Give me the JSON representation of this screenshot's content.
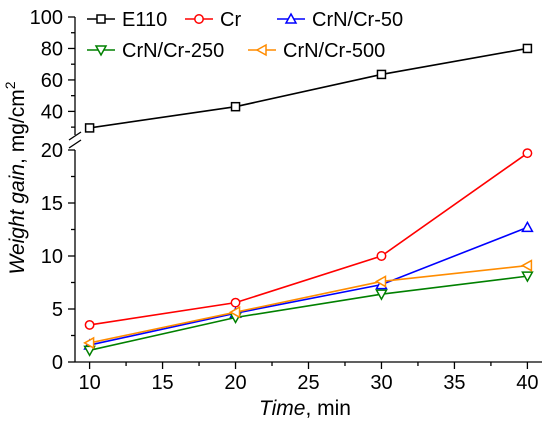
{
  "chart_data": {
    "type": "line",
    "x": [
      10,
      20,
      30,
      40
    ],
    "x_ticks": [
      "10",
      "15",
      "20",
      "25",
      "30",
      "35",
      "40"
    ],
    "xlim": [
      9,
      41
    ],
    "xlabel_italic": "Time",
    "xlabel_unit": ", min",
    "ylabel_italic": "Weight gain",
    "ylabel_unit": ", mg/cm",
    "ylabel_superscript": "2",
    "y_axis_break": true,
    "lower_ylim": [
      0,
      20
    ],
    "lower_yticks": [
      "0",
      "5",
      "10",
      "15",
      "20"
    ],
    "upper_ylim": [
      25,
      100
    ],
    "upper_yticks": [
      "40",
      "60",
      "80",
      "100"
    ],
    "grid": false,
    "legend_position": "top",
    "series": [
      {
        "name": "E110",
        "color": "#000000",
        "marker": "square",
        "values": [
          29.5,
          43,
          63.5,
          80
        ]
      },
      {
        "name": "Cr",
        "color": "#ff0000",
        "marker": "circle",
        "values": [
          3.5,
          5.6,
          10.0,
          19.7
        ]
      },
      {
        "name": "CrN/Cr-50",
        "color": "#0000ff",
        "marker": "triangle-up",
        "values": [
          1.6,
          4.6,
          7.3,
          12.7
        ]
      },
      {
        "name": "CrN/Cr-250",
        "color": "#008000",
        "marker": "triangle-down",
        "values": [
          1.1,
          4.2,
          6.4,
          8.1
        ]
      },
      {
        "name": "CrN/Cr-500",
        "color": "#ff8c00",
        "marker": "triangle-left",
        "values": [
          1.8,
          4.7,
          7.6,
          9.1
        ]
      }
    ]
  }
}
